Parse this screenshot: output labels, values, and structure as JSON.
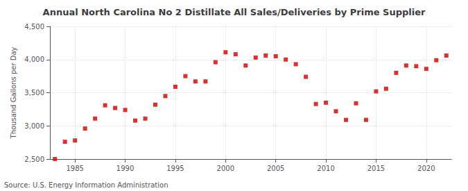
{
  "chart_data": {
    "type": "scatter",
    "title": "Annual North Carolina No 2 Distillate All Sales/Deliveries by Prime Supplier",
    "ylabel": "Thousand Gallons per Day",
    "annotations": [
      "Source: U.S. Energy Information Administration"
    ],
    "x": [
      1983,
      1984,
      1985,
      1986,
      1987,
      1988,
      1989,
      1990,
      1991,
      1992,
      1993,
      1994,
      1995,
      1996,
      1997,
      1998,
      1999,
      2000,
      2001,
      2002,
      2003,
      2004,
      2005,
      2006,
      2007,
      2008,
      2009,
      2010,
      2011,
      2012,
      2013,
      2014,
      2015,
      2016,
      2017,
      2018,
      2019,
      2020,
      2021,
      2022
    ],
    "values": [
      2500,
      2760,
      2780,
      2960,
      3110,
      3310,
      3270,
      3240,
      3080,
      3110,
      3320,
      3450,
      3590,
      3750,
      3670,
      3670,
      3960,
      4110,
      4080,
      3910,
      4030,
      4060,
      4050,
      4000,
      3930,
      3740,
      3330,
      3350,
      3220,
      3090,
      3340,
      3090,
      3520,
      3560,
      3800,
      3910,
      3900,
      3860,
      3990,
      4060
    ],
    "color": "#cc0000",
    "marker": "square",
    "xlim": [
      1982.5,
      2022.5
    ],
    "xticks": [
      1985,
      1990,
      1995,
      2000,
      2005,
      2010,
      2015,
      2020
    ],
    "ylim": [
      2500,
      4500
    ],
    "yticks": [
      {
        "value": 2500,
        "label": "2,500"
      },
      {
        "value": 3000,
        "label": "3,000"
      },
      {
        "value": 3500,
        "label": "3,500"
      },
      {
        "value": 4000,
        "label": "4,000"
      },
      {
        "value": 4500,
        "label": "4,500"
      }
    ],
    "grid": true
  }
}
